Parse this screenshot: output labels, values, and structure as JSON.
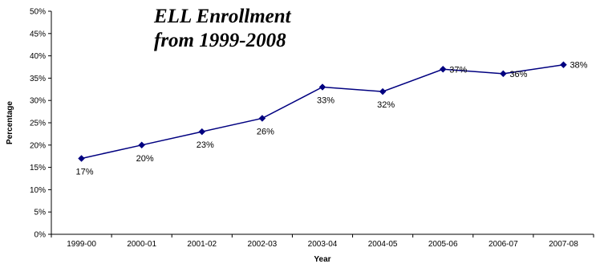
{
  "chart_data": {
    "type": "line",
    "title_lines": [
      "ELL Enrollment",
      "from 1999-2008"
    ],
    "xlabel": "Year",
    "ylabel": "Percentage",
    "ylim": [
      0,
      50
    ],
    "ytick_step": 5,
    "ytick_suffix": "%",
    "grid": false,
    "legend": "none",
    "categories": [
      "1999-00",
      "2000-01",
      "2001-02",
      "2002-03",
      "2003-04",
      "2004-05",
      "2005-06",
      "2006-07",
      "2007-08"
    ],
    "series": [
      {
        "values": [
          17,
          20,
          23,
          26,
          33,
          32,
          37,
          36,
          38
        ],
        "data_labels": [
          "17%",
          "20%",
          "23%",
          "26%",
          "33%",
          "32%",
          "37%",
          "36%",
          "38%"
        ],
        "color": "#000080",
        "marker": "diamond"
      }
    ]
  }
}
